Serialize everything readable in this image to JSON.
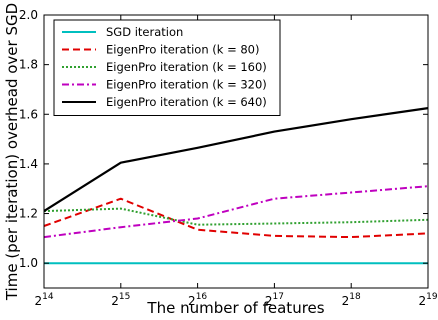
{
  "chart_data": {
    "type": "line",
    "xlabel": "The number of features",
    "ylabel": "Time (per iteration) overhead over SGD",
    "x_scale": "log2",
    "x": [
      16384,
      32768,
      65536,
      131072,
      262144,
      524288
    ],
    "x_ticks": [
      {
        "value": 16384,
        "base": "2",
        "exp": "14"
      },
      {
        "value": 32768,
        "base": "2",
        "exp": "15"
      },
      {
        "value": 65536,
        "base": "2",
        "exp": "16"
      },
      {
        "value": 131072,
        "base": "2",
        "exp": "17"
      },
      {
        "value": 262144,
        "base": "2",
        "exp": "18"
      },
      {
        "value": 524288,
        "base": "2",
        "exp": "19"
      }
    ],
    "y_ticks": [
      "1.0",
      "1.2",
      "1.4",
      "1.6",
      "1.8",
      "2.0"
    ],
    "ylim": [
      0.9,
      2.0
    ],
    "xlim": [
      16384,
      524288
    ],
    "grid": false,
    "legend_position": "top-left",
    "series": [
      {
        "name": "SGD iteration",
        "color": "#00BFBF",
        "dash": "solid",
        "values": [
          1.0,
          1.0,
          1.0,
          1.0,
          1.0,
          1.0
        ]
      },
      {
        "name": "EigenPro iteration (k = 80)",
        "color": "#E00000",
        "dash": "dashed",
        "values": [
          1.15,
          1.26,
          1.135,
          1.11,
          1.105,
          1.12
        ]
      },
      {
        "name": "EigenPro iteration (k = 160)",
        "color": "#30A030",
        "dash": "dotted",
        "values": [
          1.21,
          1.22,
          1.155,
          1.16,
          1.165,
          1.175
        ]
      },
      {
        "name": "EigenPro iteration (k = 320)",
        "color": "#BF00BF",
        "dash": "dashdot",
        "values": [
          1.105,
          1.145,
          1.18,
          1.26,
          1.285,
          1.31
        ]
      },
      {
        "name": "EigenPro iteration (k = 640)",
        "color": "#000000",
        "dash": "solid",
        "values": [
          1.21,
          1.405,
          1.465,
          1.53,
          1.58,
          1.625
        ]
      }
    ]
  }
}
